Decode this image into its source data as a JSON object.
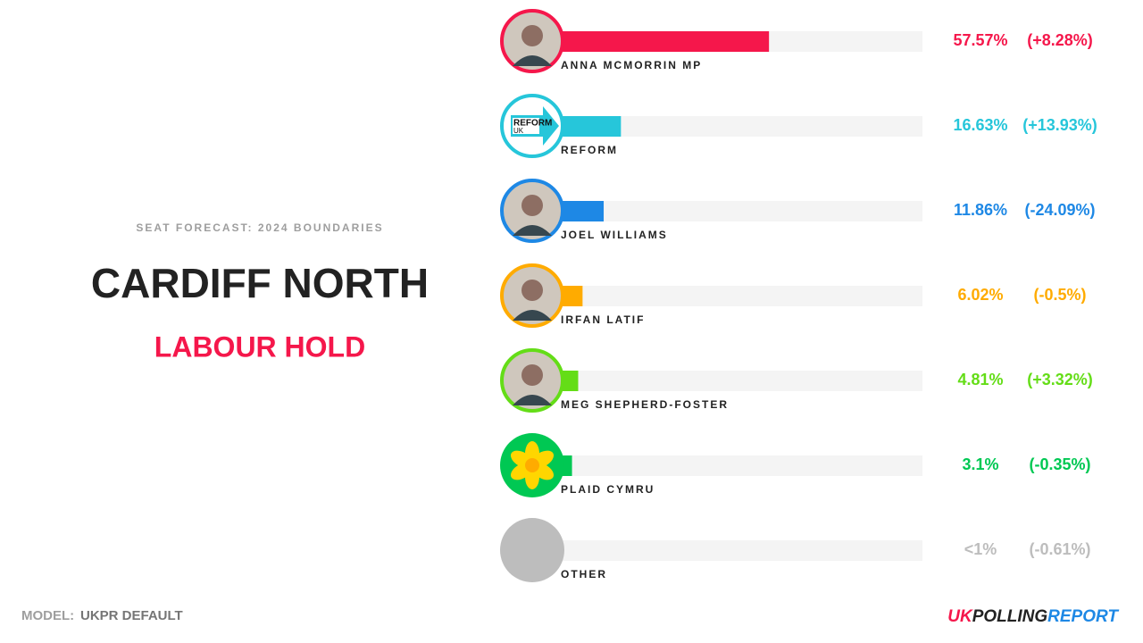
{
  "chart_data": {
    "type": "bar",
    "subtitle": "SEAT FORECAST: 2024 BOUNDARIES",
    "title": "CARDIFF NORTH",
    "annotation": "LABOUR HOLD",
    "categories": [
      "ANNA MCMORRIN MP",
      "REFORM",
      "JOEL WILLIAMS",
      "IRFAN LATIF",
      "MEG SHEPHERD-FOSTER",
      "PLAID CYMRU",
      "OTHER"
    ],
    "values": [
      57.57,
      16.63,
      11.86,
      6.02,
      4.81,
      3.1,
      0.5
    ],
    "value_labels": [
      "57.57%",
      "16.63%",
      "11.86%",
      "6.02%",
      "4.81%",
      "3.1%",
      "<1%"
    ],
    "changes": [
      8.28,
      13.93,
      -24.09,
      -0.5,
      3.32,
      -0.35,
      -0.61
    ],
    "change_labels": [
      "(+8.28%)",
      "(+13.93%)",
      "(-24.09%)",
      "(-0.5%)",
      "(+3.32%)",
      "(-0.35%)",
      "(-0.61%)"
    ],
    "colors": [
      "#f5174b",
      "#26c6da",
      "#1e88e5",
      "#ffab00",
      "#64dd17",
      "#00c853",
      "#bdbdbd"
    ],
    "logo_text": [
      "REFORM",
      "UK"
    ],
    "xlim": [
      0,
      100
    ]
  },
  "footer": {
    "model_label": "MODEL:",
    "model_value": "UKPR DEFAULT"
  },
  "brand": [
    "UK",
    "POLLING",
    "REPORT"
  ]
}
